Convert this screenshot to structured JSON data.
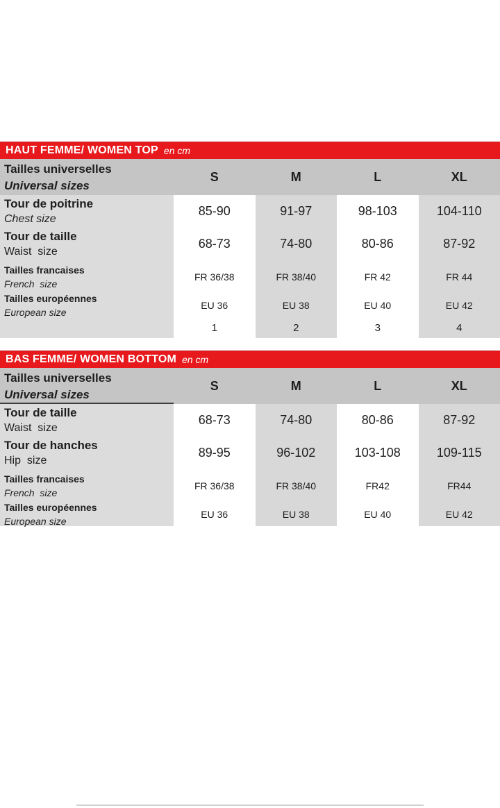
{
  "page": {
    "accent_red": "#e8191d",
    "header_gray": "#c5c5c5",
    "label_gray": "#dcdcdc",
    "band_gray": "#d8d8d8",
    "text_color": "#1e1e1e"
  },
  "tables": [
    {
      "title": "HAUT FEMME/ WOMEN TOP",
      "unit": "en cm",
      "header": {
        "fr": "Tailles universelles",
        "en": "Universal sizes",
        "sizes": [
          "S",
          "M",
          "L",
          "XL"
        ]
      },
      "rows": [
        {
          "fr": "Tour de poitrine",
          "en": "Chest size",
          "values": [
            "85-90",
            "91-97",
            "98-103",
            "104-110"
          ]
        },
        {
          "fr": "Tour de taille",
          "en": "Waist  size",
          "values": [
            "68-73",
            "74-80",
            "80-86",
            "87-92"
          ]
        },
        {
          "fr": "Tailles francaises",
          "en": "French  size",
          "values": [
            "FR 36/38",
            "FR 38/40",
            "FR 42",
            "FR 44"
          ]
        },
        {
          "fr": "Tailles européennes",
          "en": "European size",
          "values": [
            "EU 36",
            "EU 38",
            "EU 40",
            "EU 42"
          ]
        },
        {
          "fr": "",
          "en": "",
          "values": [
            "1",
            "2",
            "3",
            "4"
          ]
        }
      ]
    },
    {
      "title": "BAS FEMME/ WOMEN BOTTOM",
      "unit": "en cm",
      "header": {
        "fr": "Tailles universelles",
        "en": "Universal sizes",
        "sizes": [
          "S",
          "M",
          "L",
          "XL"
        ]
      },
      "rows": [
        {
          "fr": "Tour de taille",
          "en": "Waist  size",
          "values": [
            "68-73",
            "74-80",
            "80-86",
            "87-92"
          ]
        },
        {
          "fr": "Tour de hanches",
          "en": "Hip  size",
          "values": [
            "89-95",
            "96-102",
            "103-108",
            "109-115"
          ]
        },
        {
          "fr": "Tailles francaises",
          "en": "French  size",
          "values": [
            "FR 36/38",
            "FR 38/40",
            "FR42",
            "FR44"
          ]
        },
        {
          "fr": "Tailles européennes",
          "en": "European size",
          "values": [
            "EU 36",
            "EU 38",
            "EU 40",
            "EU 42"
          ]
        }
      ]
    }
  ]
}
